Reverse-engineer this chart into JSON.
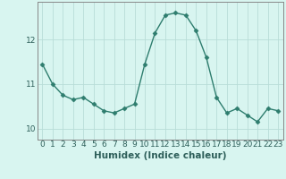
{
  "x": [
    0,
    1,
    2,
    3,
    4,
    5,
    6,
    7,
    8,
    9,
    10,
    11,
    12,
    13,
    14,
    15,
    16,
    17,
    18,
    19,
    20,
    21,
    22,
    23
  ],
  "y": [
    11.45,
    11.0,
    10.75,
    10.65,
    10.7,
    10.55,
    10.4,
    10.35,
    10.45,
    10.55,
    11.45,
    12.15,
    12.55,
    12.6,
    12.55,
    12.2,
    11.6,
    10.7,
    10.35,
    10.45,
    10.3,
    10.15,
    10.45,
    10.4
  ],
  "line_color": "#2e7d6e",
  "marker": "D",
  "marker_size": 2.5,
  "bg_color": "#d8f5f0",
  "grid_color": "#b8ddd8",
  "xlabel": "Humidex (Indice chaleur)",
  "ylim": [
    9.75,
    12.85
  ],
  "xlim": [
    -0.5,
    23.5
  ],
  "yticks": [
    10,
    11,
    12
  ],
  "xticks": [
    0,
    1,
    2,
    3,
    4,
    5,
    6,
    7,
    8,
    9,
    10,
    11,
    12,
    13,
    14,
    15,
    16,
    17,
    18,
    19,
    20,
    21,
    22,
    23
  ],
  "xlabel_fontsize": 7.5,
  "tick_fontsize": 6.5,
  "line_width": 1.0,
  "axis_color": "#888888"
}
